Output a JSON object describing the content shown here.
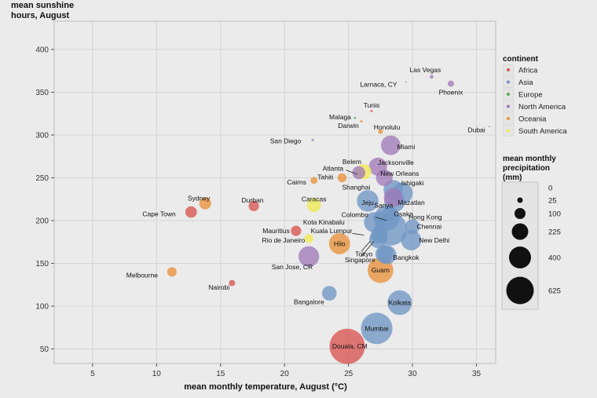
{
  "chart_data": {
    "type": "scatter",
    "xlabel": "mean monthly temperature, August (°C)",
    "ylabel_line1": "mean sunshine",
    "ylabel_line2": "hours, August",
    "xlim": [
      2,
      36.5
    ],
    "ylim": [
      33,
      433
    ],
    "x_ticks": [
      5,
      10,
      15,
      20,
      25,
      30,
      35
    ],
    "y_ticks": [
      50,
      100,
      150,
      200,
      250,
      300,
      350,
      400
    ],
    "grid": true,
    "legend_color_title": "continent",
    "legend_size_title_lines": [
      "mean monthly",
      "precipitation",
      "(mm)"
    ],
    "continents": [
      {
        "name": "Africa",
        "color": "#d9534f"
      },
      {
        "name": "Asia",
        "color": "#6f96c4"
      },
      {
        "name": "Europe",
        "color": "#58a858"
      },
      {
        "name": "North America",
        "color": "#a07ab8"
      },
      {
        "name": "Oceania",
        "color": "#e8913a"
      },
      {
        "name": "South America",
        "color": "#f0ea55"
      }
    ],
    "size_legend": [
      0,
      25,
      100,
      225,
      400,
      625
    ],
    "points": [
      {
        "city": "Las Vegas",
        "x": 31.5,
        "y": 368,
        "precip": 8,
        "continent": "North America",
        "label": "Las Vegas",
        "lx": 31.0,
        "ly": 376,
        "anchor": "middle"
      },
      {
        "city": "Larnaca, CY",
        "x": 29.5,
        "y": 362,
        "precip": 0,
        "continent": "Europe",
        "label": "Larnaca, CY",
        "lx": 28.8,
        "ly": 359,
        "anchor": "end"
      },
      {
        "city": "Phoenix",
        "x": 33.0,
        "y": 360,
        "precip": 22,
        "continent": "North America",
        "label": "Phoenix",
        "lx": 33.0,
        "ly": 350,
        "anchor": "middle"
      },
      {
        "city": "Dubai",
        "x": 36.0,
        "y": 310,
        "precip": 0,
        "continent": "Asia",
        "label": "Dubai",
        "lx": 35.0,
        "ly": 306,
        "anchor": "middle"
      },
      {
        "city": "Tunis",
        "x": 26.8,
        "y": 328,
        "precip": 3,
        "continent": "Africa",
        "label": "Tunis",
        "lx": 26.8,
        "ly": 335,
        "anchor": "middle"
      },
      {
        "city": "Malaga",
        "x": 25.5,
        "y": 320,
        "precip": 1,
        "continent": "Europe",
        "label": "Malaga",
        "lx": 25.2,
        "ly": 321,
        "anchor": "end"
      },
      {
        "city": "Darwin",
        "x": 26.0,
        "y": 316,
        "precip": 3,
        "continent": "Oceania",
        "label": "Darwin",
        "lx": 25.8,
        "ly": 311,
        "anchor": "end"
      },
      {
        "city": "Honolulu",
        "x": 27.5,
        "y": 304,
        "precip": 13,
        "continent": "Oceania",
        "label": "Honolulu",
        "lx": 28.0,
        "ly": 309,
        "anchor": "middle"
      },
      {
        "city": "Miami",
        "x": 28.3,
        "y": 288,
        "precip": 215,
        "continent": "North America",
        "label": "Miami",
        "lx": 29.5,
        "ly": 286,
        "anchor": "middle"
      },
      {
        "city": "San Diego",
        "x": 22.2,
        "y": 294,
        "precip": 1,
        "continent": "North America",
        "label": "San Diego",
        "lx": 21.3,
        "ly": 293,
        "anchor": "end"
      },
      {
        "city": "Jacksonville",
        "x": 27.3,
        "y": 263,
        "precip": 185,
        "continent": "North America",
        "label": "Jacksonville",
        "lx": 28.7,
        "ly": 268,
        "anchor": "middle"
      },
      {
        "city": "Belem",
        "x": 26.2,
        "y": 257,
        "precip": 130,
        "continent": "South America",
        "label": "Belem",
        "lx": 26.0,
        "ly": 269,
        "anchor": "end"
      },
      {
        "city": "Atlanta",
        "x": 25.8,
        "y": 256,
        "precip": 95,
        "continent": "North America",
        "label": "Atlanta",
        "lx": 24.6,
        "ly": 261,
        "anchor": "end"
      },
      {
        "city": "New Orleans",
        "x": 27.8,
        "y": 250,
        "precip": 155,
        "continent": "North America",
        "label": "New Orleans",
        "lx": 29.0,
        "ly": 255,
        "anchor": "middle"
      },
      {
        "city": "Tahiti",
        "x": 24.5,
        "y": 250,
        "precip": 45,
        "continent": "Oceania",
        "label": "Tahiti",
        "lx": 23.8,
        "ly": 251,
        "anchor": "end"
      },
      {
        "city": "Cairns",
        "x": 22.3,
        "y": 247,
        "precip": 27,
        "continent": "Oceania",
        "label": "Cairns",
        "lx": 21.7,
        "ly": 245,
        "anchor": "end"
      },
      {
        "city": "Shanghai",
        "x": 28.5,
        "y": 236,
        "precip": 215,
        "continent": "Asia",
        "label": "Shanghai",
        "lx": 26.7,
        "ly": 239,
        "anchor": "end"
      },
      {
        "city": "Ishigaki",
        "x": 29.2,
        "y": 232,
        "precip": 250,
        "continent": "Asia",
        "label": "Ishigaki",
        "lx": 30.0,
        "ly": 244,
        "anchor": "middle"
      },
      {
        "city": "Sydney",
        "x": 13.8,
        "y": 220,
        "precip": 80,
        "continent": "Oceania",
        "label": "Sydney",
        "lx": 13.3,
        "ly": 226,
        "anchor": "middle"
      },
      {
        "city": "Durban",
        "x": 17.6,
        "y": 217,
        "precip": 60,
        "continent": "Africa",
        "label": "Durban",
        "lx": 17.5,
        "ly": 224,
        "anchor": "middle"
      },
      {
        "city": "Caracas",
        "x": 22.3,
        "y": 218,
        "precip": 110,
        "continent": "South America",
        "label": "Caracas",
        "lx": 22.3,
        "ly": 225,
        "anchor": "middle"
      },
      {
        "city": "Jeju",
        "x": 26.5,
        "y": 223,
        "precip": 260,
        "continent": "Asia",
        "label": "Jeju",
        "lx": 26.5,
        "ly": 221,
        "anchor": "middle"
      },
      {
        "city": "Sanya",
        "x": 28.6,
        "y": 222,
        "precip": 240,
        "continent": "Asia",
        "label": "Sanya",
        "lx": 27.0,
        "ly": 218,
        "anchor": "start"
      },
      {
        "city": "Mazatlan",
        "x": 28.5,
        "y": 227,
        "precip": 200,
        "continent": "North America",
        "label": "Mazatlan",
        "lx": 29.9,
        "ly": 221,
        "anchor": "middle"
      },
      {
        "city": "Cape Town",
        "x": 12.7,
        "y": 210,
        "precip": 75,
        "continent": "Africa",
        "label": "Cape Town",
        "lx": 11.5,
        "ly": 208,
        "anchor": "end"
      },
      {
        "city": "Colombo",
        "x": 27.5,
        "y": 203,
        "precip": 110,
        "continent": "Asia",
        "label": "Colombo",
        "lx": 25.5,
        "ly": 207,
        "anchor": "middle"
      },
      {
        "city": "Osaka",
        "x": 28.2,
        "y": 208,
        "precip": 110,
        "continent": "Asia",
        "label": "Osaka",
        "lx": 29.3,
        "ly": 208,
        "anchor": "middle"
      },
      {
        "city": "Hong Kong",
        "x": 28.0,
        "y": 203,
        "precip": 360,
        "continent": "Asia",
        "label": "Hong Kong",
        "lx": 31.0,
        "ly": 204,
        "anchor": "middle"
      },
      {
        "city": "Kota Kinabalu",
        "x": 27.0,
        "y": 198,
        "precip": 230,
        "continent": "Asia",
        "label": "Kota Kinabalu",
        "lx": 24.7,
        "ly": 198,
        "anchor": "end"
      },
      {
        "city": "Chennai",
        "x": 30.0,
        "y": 193,
        "precip": 120,
        "continent": "Asia",
        "label": "Chennai",
        "lx": 31.3,
        "ly": 193,
        "anchor": "middle"
      },
      {
        "city": "Mauritius",
        "x": 20.9,
        "y": 188,
        "precip": 60,
        "continent": "Africa",
        "label": "Mauritius",
        "lx": 20.4,
        "ly": 188,
        "anchor": "end"
      },
      {
        "city": "Kuala Lumpur",
        "x": 27.4,
        "y": 183,
        "precip": 160,
        "continent": "Asia",
        "label": "Kuala Lumpur",
        "lx": 25.3,
        "ly": 188,
        "anchor": "end"
      },
      {
        "city": "Kolkata2",
        "x": 28.3,
        "y": 190,
        "precip": 600,
        "continent": "Asia",
        "label": "",
        "lx": 0,
        "ly": 0,
        "anchor": "middle"
      },
      {
        "city": "Rio de Janeiro",
        "x": 21.9,
        "y": 179,
        "precip": 45,
        "continent": "South America",
        "label": "Rio de Janeiro",
        "lx": 21.6,
        "ly": 177,
        "anchor": "end"
      },
      {
        "city": "New Delhi",
        "x": 29.9,
        "y": 177,
        "precip": 230,
        "continent": "Asia",
        "label": "New Delhi",
        "lx": 31.7,
        "ly": 177,
        "anchor": "middle"
      },
      {
        "city": "Hilo",
        "x": 24.3,
        "y": 173,
        "precip": 250,
        "continent": "Oceania",
        "label": "Hilo",
        "lx": 24.3,
        "ly": 173,
        "anchor": "middle"
      },
      {
        "city": "Tokyo",
        "x": 27.3,
        "y": 178,
        "precip": 170,
        "continent": "Asia",
        "label": "Tokyo",
        "lx": 26.2,
        "ly": 161,
        "anchor": "middle"
      },
      {
        "city": "San Jose, CR",
        "x": 21.9,
        "y": 158,
        "precip": 240,
        "continent": "North America",
        "label": "San Jose, CR",
        "lx": 20.6,
        "ly": 146,
        "anchor": "middle"
      },
      {
        "city": "Singapore",
        "x": 27.8,
        "y": 161,
        "precip": 180,
        "continent": "Asia",
        "label": "Singapore",
        "lx": 25.9,
        "ly": 154,
        "anchor": "middle"
      },
      {
        "city": "Bangkok",
        "x": 28.0,
        "y": 160,
        "precip": 200,
        "continent": "Asia",
        "label": "Bangkok",
        "lx": 29.5,
        "ly": 157,
        "anchor": "middle"
      },
      {
        "city": "Guam",
        "x": 27.5,
        "y": 142,
        "precip": 370,
        "continent": "Oceania",
        "label": "Guam",
        "lx": 27.5,
        "ly": 142,
        "anchor": "middle"
      },
      {
        "city": "Melbourne",
        "x": 11.2,
        "y": 140,
        "precip": 50,
        "continent": "Oceania",
        "label": "Melbourne",
        "lx": 10.1,
        "ly": 136,
        "anchor": "end"
      },
      {
        "city": "Nairobi",
        "x": 15.9,
        "y": 127,
        "precip": 22,
        "continent": "Africa",
        "label": "Nairobi",
        "lx": 15.7,
        "ly": 122,
        "anchor": "end"
      },
      {
        "city": "Bangalore",
        "x": 23.5,
        "y": 115,
        "precip": 120,
        "continent": "Asia",
        "label": "Bangalore",
        "lx": 23.1,
        "ly": 105,
        "anchor": "end"
      },
      {
        "city": "Kolkata",
        "x": 29.0,
        "y": 104,
        "precip": 340,
        "continent": "Asia",
        "label": "Kolkata",
        "lx": 29.0,
        "ly": 104,
        "anchor": "middle"
      },
      {
        "city": "Mumbai",
        "x": 27.2,
        "y": 74,
        "precip": 560,
        "continent": "Asia",
        "label": "Mumbai",
        "lx": 27.2,
        "ly": 74,
        "anchor": "middle"
      },
      {
        "city": "Douala, CM",
        "x": 24.9,
        "y": 53,
        "precip": 700,
        "continent": "Africa",
        "label": "Douala, CM",
        "lx": 25.1,
        "ly": 53,
        "anchor": "middle"
      }
    ],
    "arrows": [
      {
        "from": [
          24.8,
          259
        ],
        "to": [
          25.7,
          254
        ]
      },
      {
        "from": [
          27.1,
          204
        ],
        "to": [
          28.0,
          200
        ]
      },
      {
        "from": [
          25.3,
          185
        ],
        "to": [
          26.2,
          183
        ]
      },
      {
        "from": [
          26.0,
          164
        ],
        "to": [
          26.7,
          176
        ]
      },
      {
        "from": [
          26.0,
          158
        ],
        "to": [
          27.0,
          176
        ]
      }
    ]
  }
}
